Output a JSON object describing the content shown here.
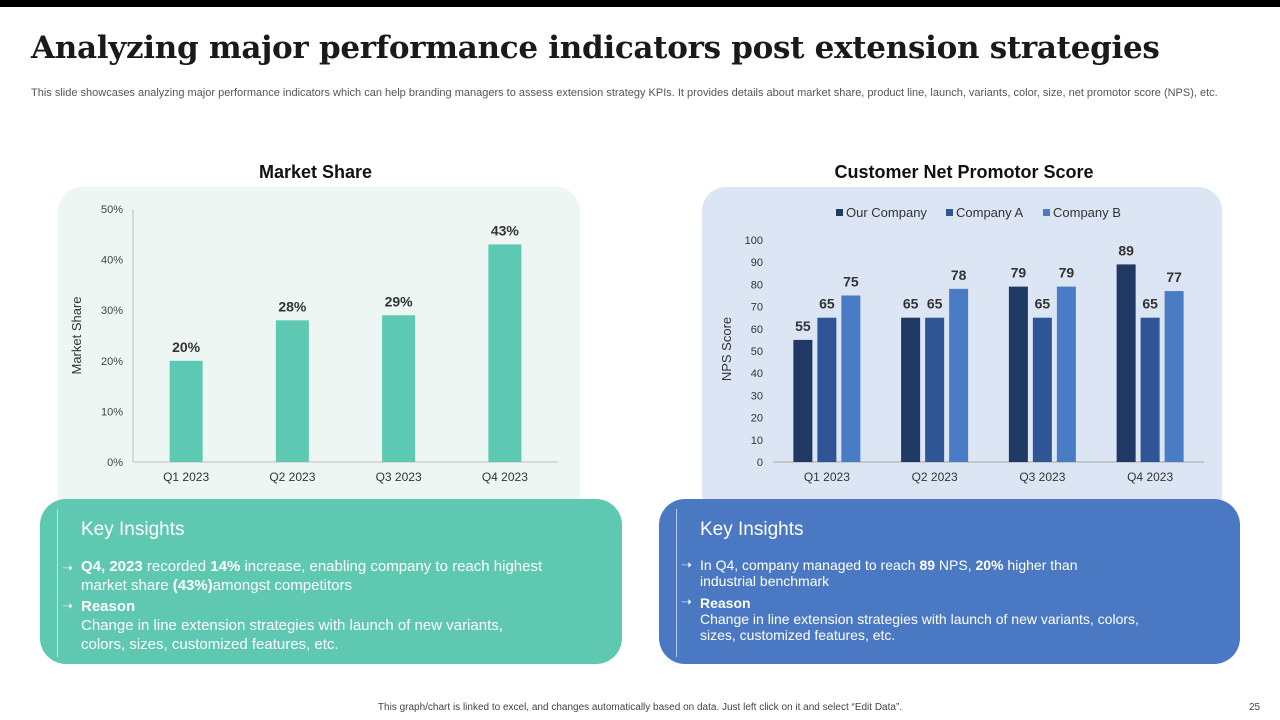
{
  "slide": {
    "title": "Analyzing major performance indicators post extension strategies",
    "subtitle": "This slide showcases analyzing major performance indicators which can help branding managers to assess extension strategy KPIs. It provides details about market share, product line, launch, variants, color, size, net promotor score (NPS), etc.",
    "footer": "This graph/chart is linked to excel, and changes automatically based on data. Just left click on it and select “Edit Data”.",
    "page_number": "25"
  },
  "colors": {
    "teal_bar": "#5dc9b2",
    "our_company": "#203864",
    "company_a": "#2f5597",
    "company_b": "#4a7cc6",
    "left_panel": "#eef6f3",
    "right_panel": "#dce5f3",
    "left_insight": "#5fc8b1",
    "right_insight": "#4a78c2"
  },
  "chart_data": [
    {
      "type": "bar",
      "title": "Market Share",
      "ylabel": "Market Share",
      "categories": [
        "Q1 2023",
        "Q2 2023",
        "Q3 2023",
        "Q4 2023"
      ],
      "values": [
        20,
        28,
        29,
        43
      ],
      "value_labels": [
        "20%",
        "28%",
        "29%",
        "43%"
      ],
      "ylim": [
        0,
        50
      ],
      "yticks": [
        "0%",
        "10%",
        "20%",
        "30%",
        "40%",
        "50%"
      ]
    },
    {
      "type": "bar",
      "title": "Customer Net Promotor Score",
      "ylabel": "NPS Score",
      "categories": [
        "Q1 2023",
        "Q2 2023",
        "Q3 2023",
        "Q4 2023"
      ],
      "series": [
        {
          "name": "Our Company",
          "values": [
            55,
            65,
            79,
            89
          ]
        },
        {
          "name": "Company A",
          "values": [
            65,
            65,
            65,
            65
          ]
        },
        {
          "name": "Company B",
          "values": [
            75,
            78,
            79,
            77
          ]
        }
      ],
      "ylim": [
        0,
        100
      ],
      "yticks": [
        "0",
        "10",
        "20",
        "30",
        "40",
        "50",
        "60",
        "70",
        "80",
        "90",
        "100"
      ],
      "legend": "top"
    }
  ],
  "insights": {
    "left": {
      "title": "Key Insights",
      "b1_part1": "Q4, 2023",
      "b1_part2": " recorded ",
      "b1_part3": "14%",
      "b1_part4": " increase, enabling company to reach highest",
      "b1_line2a": "market share ",
      "b1_line2b": "(43%)",
      "b1_line2c": "amongst competitors",
      "reason_label": "Reason",
      "reason_line1": "Change in line extension strategies with launch  of new variants,",
      "reason_line2": "colors, sizes, customized features, etc."
    },
    "right": {
      "title": "Key Insights",
      "b1_part1": "In Q4, company managed to reach ",
      "b1_part2": "89",
      "b1_part3": " NPS,  ",
      "b1_part4": "20%",
      "b1_part5": "  higher than",
      "b1_line2": "industrial benchmark",
      "reason_label": "Reason",
      "reason_line1": "Change in line extension strategies with launch of new variants, colors,",
      "reason_line2": "sizes, customized features, etc."
    }
  }
}
